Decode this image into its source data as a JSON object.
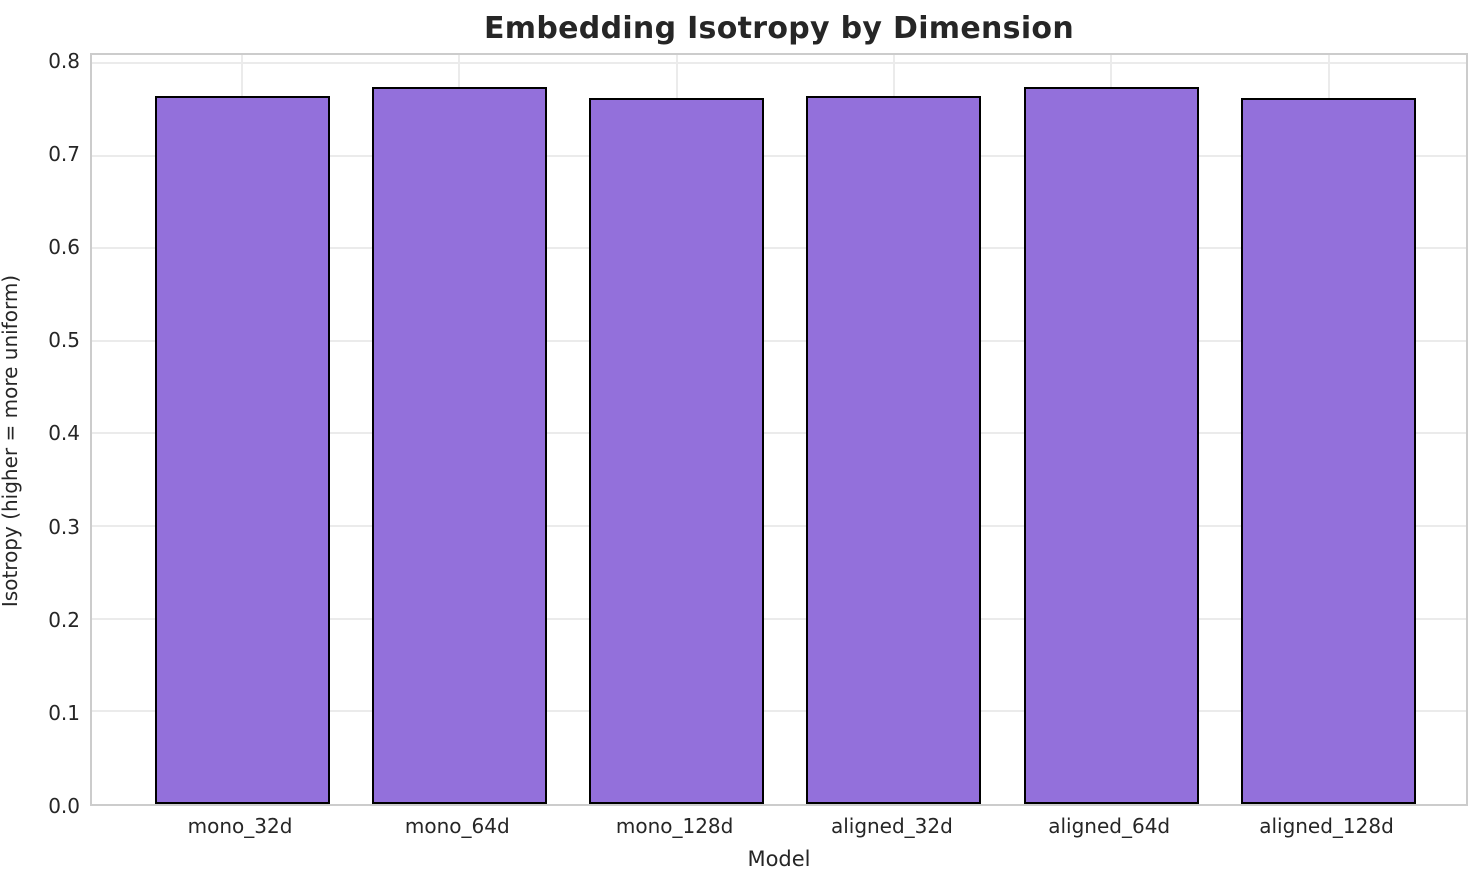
{
  "chart_data": {
    "type": "bar",
    "title": "Embedding Isotropy by Dimension",
    "xlabel": "Model",
    "ylabel": "Isotropy (higher = more uniform)",
    "categories": [
      "mono_32d",
      "mono_64d",
      "mono_128d",
      "aligned_32d",
      "aligned_64d",
      "aligned_128d"
    ],
    "values": [
      0.76,
      0.77,
      0.758,
      0.76,
      0.77,
      0.758
    ],
    "ylim": [
      0,
      0.8085
    ],
    "yticks": [
      0.0,
      0.1,
      0.2,
      0.3,
      0.4,
      0.5,
      0.6,
      0.7,
      0.8
    ],
    "ytick_labels": [
      "0.0",
      "0.1",
      "0.2",
      "0.3",
      "0.4",
      "0.5",
      "0.6",
      "0.7",
      "0.8"
    ],
    "grid": true,
    "legend_position": "none",
    "colors": {
      "bar_fill": "#9370DB",
      "bar_edge": "#000000",
      "grid": "#ebebeb",
      "spine": "#cccccc",
      "text": "#262626"
    }
  }
}
